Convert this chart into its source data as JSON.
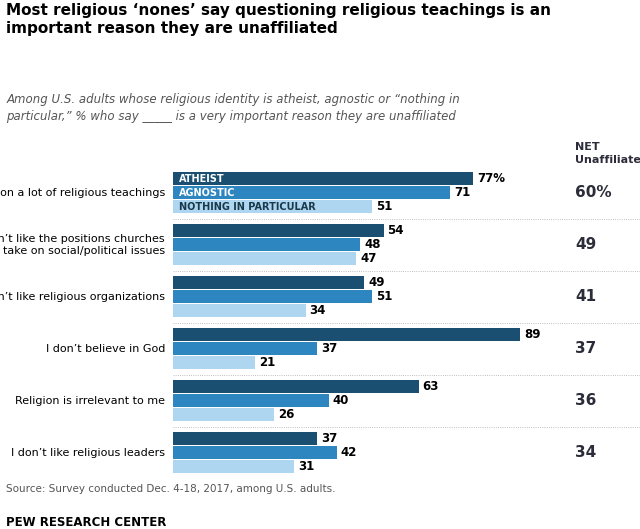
{
  "title": "Most religious ‘nones’ say questioning religious teachings is an\nimportant reason they are unaffiliated",
  "subtitle_line1": "Among U.S. adults whose religious identity is atheist, agnostic or “nothing in",
  "subtitle_line2": "particular,” % who say _____ is a very important reason they are unaffiliated",
  "source": "Source: Survey conducted Dec. 4-18, 2017, among U.S. adults.",
  "branding": "PEW RESEARCH CENTER",
  "categories": [
    "I question a lot of religious teachings",
    "I don’t like the positions churches\ntake on social/political issues",
    "I don’t like religious organizations",
    "I don’t believe in God",
    "Religion is irrelevant to me",
    "I don’t like religious leaders"
  ],
  "atheist_values": [
    77,
    54,
    49,
    89,
    63,
    37
  ],
  "agnostic_values": [
    71,
    48,
    51,
    37,
    40,
    42
  ],
  "nothing_values": [
    51,
    47,
    34,
    21,
    26,
    31
  ],
  "net_values": [
    "60%",
    "49",
    "41",
    "37",
    "36",
    "34"
  ],
  "atheist_color": "#1b4f72",
  "agnostic_color": "#2e86c1",
  "nothing_color": "#aed6f1",
  "legend_labels": [
    "ATHEIST",
    "AGNOSTIC",
    "NOTHING IN PARTICULAR"
  ],
  "net_header": "NET\nUnaffiliated"
}
